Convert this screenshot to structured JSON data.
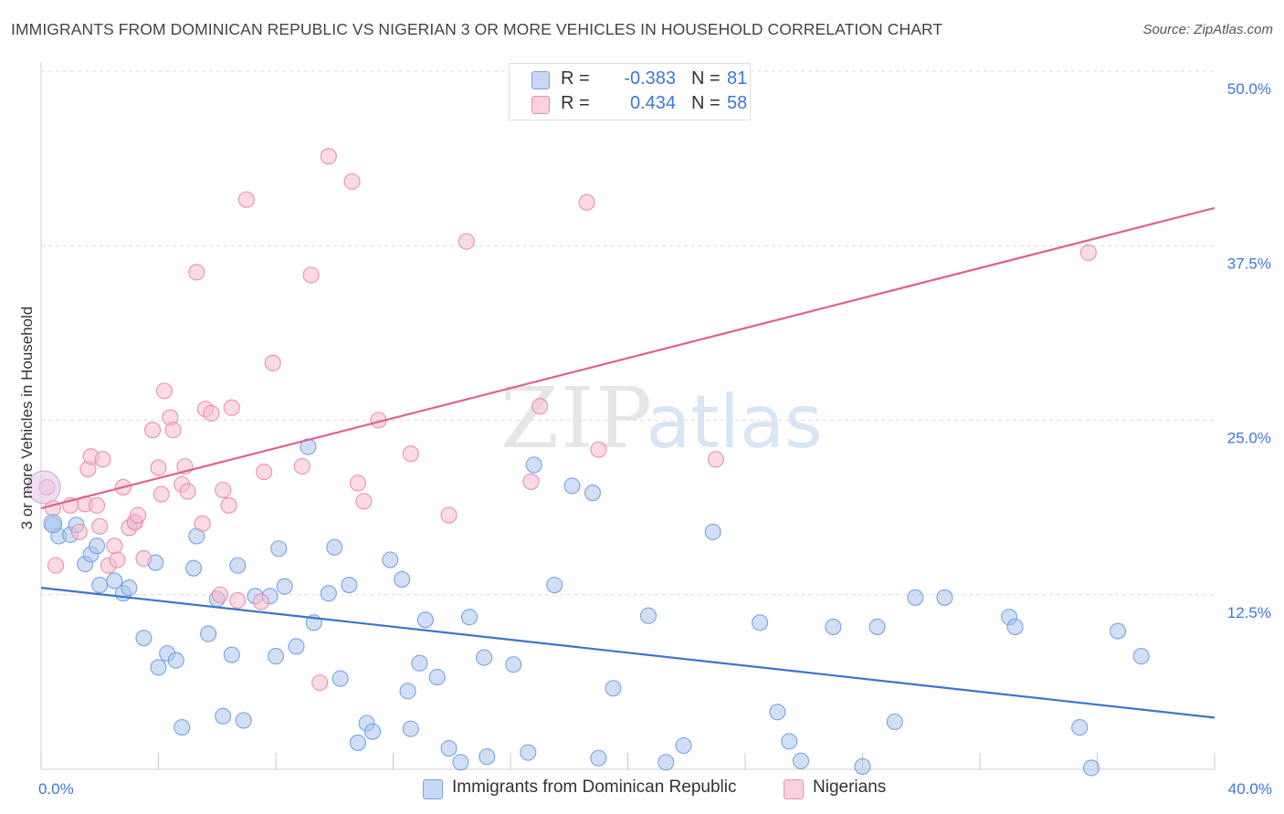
{
  "title": "IMMIGRANTS FROM DOMINICAN REPUBLIC VS NIGERIAN 3 OR MORE VEHICLES IN HOUSEHOLD CORRELATION CHART",
  "source": "Source: ZipAtlas.com",
  "watermark": {
    "zip": "ZIP",
    "atlas": "atlas"
  },
  "legend": {
    "rows": [
      {
        "r_label": "R =",
        "r_value": "-0.383",
        "n_label": "N =",
        "n_value": "81",
        "color": "#a9c4ef",
        "border": "#7aa3e0"
      },
      {
        "r_label": "R =",
        "r_value": "0.434",
        "n_label": "N =",
        "n_value": "58",
        "color": "#f7bcd0",
        "border": "#e890ad"
      }
    ]
  },
  "bottom_legend": [
    {
      "label": "Immigrants from Dominican Republic",
      "color": "#a9c4ef",
      "border": "#7aa3e0"
    },
    {
      "label": "Nigerians",
      "color": "#f7bcd0",
      "border": "#e890ad"
    }
  ],
  "chart_data": {
    "type": "scatter",
    "title": "IMMIGRANTS FROM DOMINICAN REPUBLIC VS NIGERIAN 3 OR MORE VEHICLES IN HOUSEHOLD CORRELATION CHART",
    "xlabel": "",
    "ylabel": "3 or more Vehicles in Household",
    "xlim": [
      0,
      40
    ],
    "ylim": [
      0,
      50
    ],
    "x_tick_labels": [
      "0.0%",
      "40.0%"
    ],
    "y_ticks": [
      12.5,
      25.0,
      37.5,
      50.0
    ],
    "y_tick_labels": [
      "12.5%",
      "25.0%",
      "37.5%",
      "50.0%"
    ],
    "grid": true,
    "legend_position": "top-center",
    "series": [
      {
        "name": "Immigrants from Dominican Republic",
        "color": "#7aa3e0",
        "fill": "#a9c4ef",
        "trend": {
          "x": [
            0,
            40
          ],
          "y": [
            13.0,
            3.7
          ],
          "color": "#3a74d0"
        },
        "points": [
          [
            0.4,
            17.5
          ],
          [
            0.6,
            16.7
          ],
          [
            1.0,
            16.8
          ],
          [
            1.2,
            17.5
          ],
          [
            1.5,
            14.7
          ],
          [
            1.7,
            15.4
          ],
          [
            1.9,
            16.0
          ],
          [
            2.0,
            13.2
          ],
          [
            2.5,
            13.5
          ],
          [
            2.8,
            12.6
          ],
          [
            3.0,
            13.0
          ],
          [
            3.2,
            17.7
          ],
          [
            3.5,
            9.4
          ],
          [
            3.9,
            14.8
          ],
          [
            4.0,
            7.3
          ],
          [
            4.3,
            8.3
          ],
          [
            4.6,
            7.8
          ],
          [
            4.8,
            3.0
          ],
          [
            5.2,
            14.4
          ],
          [
            5.3,
            16.7
          ],
          [
            5.7,
            9.7
          ],
          [
            6.0,
            12.2
          ],
          [
            6.2,
            3.8
          ],
          [
            6.5,
            8.2
          ],
          [
            6.7,
            14.6
          ],
          [
            6.9,
            3.5
          ],
          [
            7.3,
            12.4
          ],
          [
            7.8,
            12.4
          ],
          [
            8.0,
            8.1
          ],
          [
            8.3,
            13.1
          ],
          [
            8.1,
            15.8
          ],
          [
            8.7,
            8.8
          ],
          [
            9.1,
            23.1
          ],
          [
            9.3,
            10.5
          ],
          [
            9.8,
            12.6
          ],
          [
            10.0,
            15.9
          ],
          [
            10.2,
            6.5
          ],
          [
            10.5,
            13.2
          ],
          [
            10.8,
            1.9
          ],
          [
            11.1,
            3.3
          ],
          [
            11.3,
            2.7
          ],
          [
            11.9,
            15.0
          ],
          [
            12.3,
            13.6
          ],
          [
            12.5,
            5.6
          ],
          [
            12.6,
            2.9
          ],
          [
            12.9,
            7.6
          ],
          [
            13.1,
            10.7
          ],
          [
            13.5,
            6.6
          ],
          [
            13.9,
            1.5
          ],
          [
            14.3,
            0.5
          ],
          [
            14.6,
            10.9
          ],
          [
            15.1,
            8.0
          ],
          [
            15.2,
            0.9
          ],
          [
            16.1,
            7.5
          ],
          [
            16.6,
            1.2
          ],
          [
            16.8,
            21.8
          ],
          [
            17.5,
            13.2
          ],
          [
            18.1,
            20.3
          ],
          [
            18.8,
            19.8
          ],
          [
            19.0,
            0.8
          ],
          [
            19.5,
            5.8
          ],
          [
            20.7,
            11.0
          ],
          [
            21.3,
            0.5
          ],
          [
            21.9,
            1.7
          ],
          [
            22.9,
            17.0
          ],
          [
            24.5,
            10.5
          ],
          [
            25.1,
            4.1
          ],
          [
            25.5,
            2.0
          ],
          [
            25.9,
            0.6
          ],
          [
            27.0,
            10.2
          ],
          [
            28.0,
            0.2
          ],
          [
            28.5,
            10.2
          ],
          [
            29.1,
            3.4
          ],
          [
            29.8,
            12.3
          ],
          [
            30.8,
            12.3
          ],
          [
            33.0,
            10.9
          ],
          [
            33.2,
            10.2
          ],
          [
            35.4,
            3.0
          ],
          [
            35.8,
            0.1
          ],
          [
            36.7,
            9.9
          ],
          [
            37.5,
            8.1
          ]
        ]
      },
      {
        "name": "Nigerians",
        "color": "#e890ad",
        "fill": "#f7bcd0",
        "trend": {
          "x": [
            0,
            40
          ],
          "y": [
            18.7,
            40.2
          ],
          "color": "#e0608e"
        },
        "points": [
          [
            0.2,
            20.2
          ],
          [
            0.4,
            18.7
          ],
          [
            0.5,
            14.6
          ],
          [
            1.0,
            18.9
          ],
          [
            1.3,
            17.0
          ],
          [
            1.5,
            19.0
          ],
          [
            1.6,
            21.5
          ],
          [
            1.7,
            22.4
          ],
          [
            1.9,
            18.9
          ],
          [
            2.0,
            17.4
          ],
          [
            2.1,
            22.2
          ],
          [
            2.3,
            14.6
          ],
          [
            2.5,
            16.0
          ],
          [
            2.6,
            15.0
          ],
          [
            2.8,
            20.2
          ],
          [
            3.0,
            17.3
          ],
          [
            3.2,
            17.7
          ],
          [
            3.3,
            18.2
          ],
          [
            3.5,
            15.1
          ],
          [
            3.8,
            24.3
          ],
          [
            4.0,
            21.6
          ],
          [
            4.1,
            19.7
          ],
          [
            4.2,
            27.1
          ],
          [
            4.4,
            25.2
          ],
          [
            4.5,
            24.3
          ],
          [
            4.8,
            20.4
          ],
          [
            4.9,
            21.7
          ],
          [
            5.0,
            19.9
          ],
          [
            5.3,
            35.6
          ],
          [
            5.5,
            17.6
          ],
          [
            5.6,
            25.8
          ],
          [
            5.8,
            25.5
          ],
          [
            6.1,
            12.5
          ],
          [
            6.2,
            20.0
          ],
          [
            6.4,
            18.9
          ],
          [
            6.5,
            25.9
          ],
          [
            6.7,
            12.1
          ],
          [
            7.0,
            40.8
          ],
          [
            7.5,
            12.0
          ],
          [
            7.6,
            21.3
          ],
          [
            7.9,
            29.1
          ],
          [
            8.9,
            21.7
          ],
          [
            9.2,
            35.4
          ],
          [
            9.5,
            6.2
          ],
          [
            9.8,
            43.9
          ],
          [
            10.6,
            42.1
          ],
          [
            10.8,
            20.5
          ],
          [
            11.0,
            19.2
          ],
          [
            11.5,
            25.0
          ],
          [
            12.6,
            22.6
          ],
          [
            13.9,
            18.2
          ],
          [
            14.5,
            37.8
          ],
          [
            16.7,
            20.6
          ],
          [
            17.0,
            26.0
          ],
          [
            18.6,
            40.6
          ],
          [
            19.0,
            22.9
          ],
          [
            23.0,
            22.2
          ],
          [
            35.7,
            37.0
          ]
        ]
      }
    ]
  }
}
